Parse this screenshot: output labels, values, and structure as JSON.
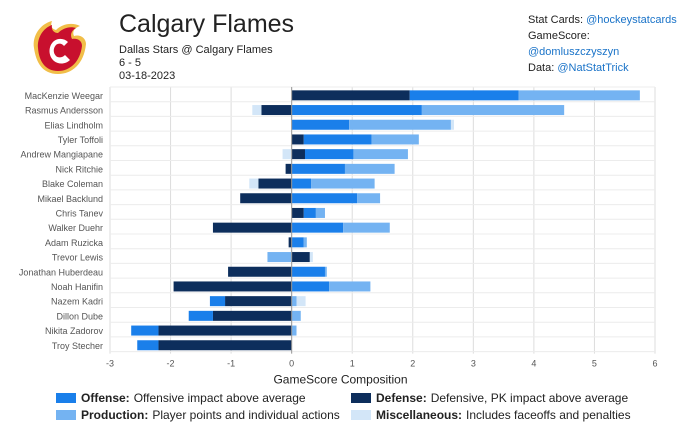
{
  "header": {
    "team": "Calgary Flames",
    "matchup": "Dallas Stars @ Calgary Flames",
    "score": "6 - 5",
    "date": "03-18-2023"
  },
  "credits": [
    {
      "label": "Stat Cards: ",
      "handle": "@hockeystatcards"
    },
    {
      "label": "GameScore: ",
      "handle": "@domluszczyszyn"
    },
    {
      "label": "Data: ",
      "handle": "@NatStatTrick"
    }
  ],
  "colors": {
    "offense": "#1a7fea",
    "defense": "#0d2e5c",
    "production": "#74b3f2",
    "misc": "#d3e6f8",
    "logo_red": "#c8102e",
    "logo_gold": "#f1be48"
  },
  "legend": [
    {
      "key": "offense",
      "title": "Offense:",
      "desc": "Offensive impact above average"
    },
    {
      "key": "defense",
      "title": "Defense:",
      "desc": "Defensive, PK impact above average"
    },
    {
      "key": "production",
      "title": "Production:",
      "desc": "Player points and individual actions"
    },
    {
      "key": "misc",
      "title": "Miscellaneous:",
      "desc": "Includes faceoffs and penalties"
    }
  ],
  "chart_data": {
    "type": "bar",
    "orientation": "horizontal",
    "stacked": true,
    "xlabel": "GameScore Composition",
    "xlim": [
      -3,
      6
    ],
    "xticks": [
      -3,
      -2,
      -1,
      0,
      1,
      2,
      3,
      4,
      5,
      6
    ],
    "grid": true,
    "categories": [
      "MacKenzie Weegar",
      "Rasmus Andersson",
      "Elias Lindholm",
      "Tyler Toffoli",
      "Andrew Mangiapane",
      "Nick Ritchie",
      "Blake Coleman",
      "Mikael Backlund",
      "Chris Tanev",
      "Walker Duehr",
      "Adam Ruzicka",
      "Trevor Lewis",
      "Jonathan Huberdeau",
      "Noah Hanifin",
      "Nazem Kadri",
      "Dillon Dube",
      "Nikita Zadorov",
      "Troy Stecher"
    ],
    "series": [
      {
        "name": "Defense",
        "key": "defense",
        "values": [
          1.95,
          -0.5,
          0.0,
          0.2,
          0.22,
          -0.1,
          -0.55,
          -0.85,
          0.2,
          -1.3,
          -0.05,
          0.3,
          -1.05,
          -1.95,
          -1.1,
          -1.3,
          -2.2,
          -2.2
        ]
      },
      {
        "name": "Offense",
        "key": "offense",
        "values": [
          1.8,
          2.15,
          0.95,
          1.12,
          0.8,
          0.88,
          0.32,
          1.08,
          0.2,
          0.85,
          0.2,
          0.0,
          0.55,
          0.62,
          -0.25,
          -0.4,
          -0.45,
          -0.35
        ]
      },
      {
        "name": "Production",
        "key": "production",
        "values": [
          2.0,
          2.35,
          1.68,
          0.78,
          0.9,
          0.82,
          1.05,
          0.38,
          0.15,
          0.77,
          0.05,
          -0.4,
          0.03,
          0.68,
          0.08,
          0.15,
          0.08,
          0.0
        ]
      },
      {
        "name": "Miscellaneous",
        "key": "misc",
        "values": [
          0.0,
          -0.15,
          0.05,
          0.0,
          -0.15,
          0.0,
          -0.15,
          0.0,
          0.0,
          0.0,
          0.0,
          0.05,
          0.0,
          0.0,
          0.15,
          0.0,
          0.0,
          0.0
        ]
      }
    ]
  }
}
